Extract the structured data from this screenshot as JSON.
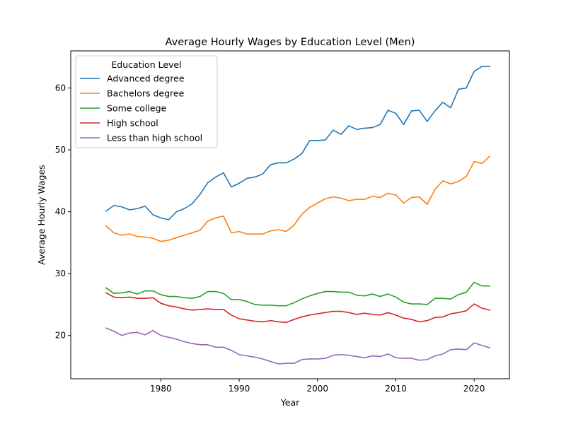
{
  "chart_data": {
    "type": "line",
    "title": "Average Hourly Wages by Education Level (Men)",
    "xlabel": "Year",
    "ylabel": "Average Hourly Wages",
    "xlim": [
      1968.5,
      2024.5
    ],
    "ylim": [
      13.0,
      66.0
    ],
    "xticks": [
      1980,
      1990,
      2000,
      2010,
      2020
    ],
    "yticks": [
      20,
      30,
      40,
      50,
      60
    ],
    "grid": false,
    "legend": {
      "title": "Education Level",
      "placement": "top-left"
    },
    "x": [
      1973,
      1974,
      1975,
      1976,
      1977,
      1978,
      1979,
      1980,
      1981,
      1982,
      1983,
      1984,
      1985,
      1986,
      1987,
      1988,
      1989,
      1990,
      1991,
      1992,
      1993,
      1994,
      1995,
      1996,
      1997,
      1998,
      1999,
      2000,
      2001,
      2002,
      2003,
      2004,
      2005,
      2006,
      2007,
      2008,
      2009,
      2010,
      2011,
      2012,
      2013,
      2014,
      2015,
      2016,
      2017,
      2018,
      2019,
      2020,
      2021,
      2022
    ],
    "series": [
      {
        "name": "Advanced degree",
        "color": "#1f77b4",
        "values": [
          40.1,
          41.0,
          40.8,
          40.3,
          40.5,
          40.9,
          39.5,
          39.0,
          38.7,
          40.0,
          40.5,
          41.3,
          42.8,
          44.7,
          45.6,
          46.3,
          44.0,
          44.6,
          45.4,
          45.6,
          46.1,
          47.6,
          47.9,
          47.9,
          48.5,
          49.4,
          51.5,
          51.5,
          51.6,
          53.2,
          52.5,
          53.9,
          53.3,
          53.5,
          53.6,
          54.1,
          56.4,
          55.9,
          54.1,
          56.3,
          56.4,
          54.6,
          56.3,
          57.7,
          56.8,
          59.8,
          60.0,
          62.7,
          63.5,
          63.5
        ]
      },
      {
        "name": "Bachelors degree",
        "color": "#ff7f0e",
        "values": [
          37.7,
          36.6,
          36.2,
          36.4,
          36.0,
          35.9,
          35.7,
          35.2,
          35.4,
          35.8,
          36.2,
          36.6,
          37.0,
          38.5,
          39.0,
          39.3,
          36.6,
          36.8,
          36.4,
          36.4,
          36.4,
          36.9,
          37.1,
          36.8,
          37.8,
          39.6,
          40.7,
          41.4,
          42.1,
          42.4,
          42.2,
          41.8,
          42.0,
          42.0,
          42.5,
          42.3,
          43.0,
          42.7,
          41.4,
          42.3,
          42.4,
          41.2,
          43.6,
          45.0,
          44.5,
          44.9,
          45.7,
          48.1,
          47.8,
          49.0
        ]
      },
      {
        "name": "Some college",
        "color": "#2ca02c",
        "values": [
          27.7,
          26.8,
          26.9,
          27.1,
          26.7,
          27.2,
          27.2,
          26.6,
          26.3,
          26.3,
          26.1,
          26.0,
          26.3,
          27.1,
          27.1,
          26.8,
          25.8,
          25.8,
          25.5,
          25.0,
          24.9,
          24.9,
          24.8,
          24.8,
          25.3,
          25.9,
          26.4,
          26.8,
          27.1,
          27.1,
          27.0,
          27.0,
          26.5,
          26.4,
          26.7,
          26.3,
          26.7,
          26.2,
          25.4,
          25.1,
          25.1,
          25.0,
          26.0,
          26.0,
          25.9,
          26.6,
          27.0,
          28.6,
          28.0,
          28.0
        ]
      },
      {
        "name": "High school",
        "color": "#d62728",
        "values": [
          26.9,
          26.2,
          26.1,
          26.2,
          26.0,
          26.0,
          26.1,
          25.2,
          24.8,
          24.6,
          24.3,
          24.1,
          24.2,
          24.3,
          24.2,
          24.2,
          23.3,
          22.7,
          22.5,
          22.3,
          22.2,
          22.4,
          22.2,
          22.1,
          22.6,
          23.0,
          23.3,
          23.5,
          23.7,
          23.9,
          23.9,
          23.7,
          23.4,
          23.6,
          23.4,
          23.3,
          23.7,
          23.3,
          22.8,
          22.6,
          22.2,
          22.4,
          22.9,
          23.0,
          23.5,
          23.7,
          24.0,
          25.1,
          24.4,
          24.1
        ]
      },
      {
        "name": "Less than high school",
        "color": "#9467bd",
        "values": [
          21.2,
          20.7,
          20.0,
          20.4,
          20.5,
          20.1,
          20.8,
          20.0,
          19.7,
          19.4,
          19.0,
          18.7,
          18.5,
          18.5,
          18.1,
          18.1,
          17.6,
          16.9,
          16.7,
          16.5,
          16.2,
          15.8,
          15.4,
          15.5,
          15.5,
          16.1,
          16.2,
          16.2,
          16.3,
          16.8,
          16.9,
          16.8,
          16.6,
          16.4,
          16.7,
          16.6,
          17.0,
          16.4,
          16.3,
          16.3,
          16.0,
          16.1,
          16.7,
          17.0,
          17.7,
          17.8,
          17.7,
          18.8,
          18.4,
          18.0
        ]
      }
    ]
  }
}
